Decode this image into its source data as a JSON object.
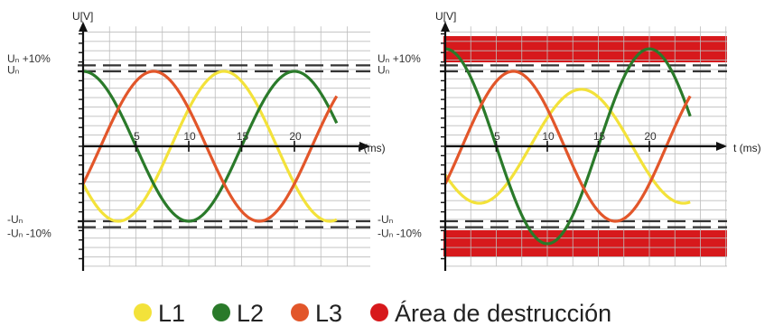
{
  "chart_data": [
    {
      "type": "line",
      "ylabel": "U[V]",
      "xlabel": "t (ms)",
      "xlim": [
        0,
        24
      ],
      "ylim": [
        -1.55,
        1.55
      ],
      "x_ticks": [
        5,
        10,
        15,
        20
      ],
      "y_labels": {
        "un_plus": "Uₙ +10%",
        "un": "Uₙ",
        "un_minus": "-Uₙ",
        "un_minus_10": "-Uₙ -10%"
      },
      "dashed_levels": [
        1.08,
        1.0,
        -1.0,
        -1.08
      ],
      "destruction_band": false,
      "series": [
        {
          "name": "L1",
          "color": "#f3e23a",
          "amplitude": 1.0,
          "phase_deg": -150
        },
        {
          "name": "L2",
          "color": "#2a7a2a",
          "amplitude": 1.0,
          "phase_deg": 90
        },
        {
          "name": "L3",
          "color": "#e2562a",
          "amplitude": 1.0,
          "phase_deg": -30
        }
      ]
    },
    {
      "type": "line",
      "ylabel": "U[V]",
      "xlabel": "t (ms)",
      "xlim": [
        0,
        24
      ],
      "ylim": [
        -1.55,
        1.55
      ],
      "x_ticks": [
        5,
        10,
        15,
        20
      ],
      "y_labels": {
        "un_plus": "Uₙ +10%",
        "un": "Uₙ",
        "un_minus": "-Uₙ",
        "un_minus_10": "-Uₙ -10%"
      },
      "dashed_levels": [
        1.08,
        1.0,
        -1.0,
        -1.08
      ],
      "destruction_band": true,
      "series": [
        {
          "name": "L1",
          "color": "#f3e23a",
          "amplitude": 0.76,
          "phase_deg": -150
        },
        {
          "name": "L2",
          "color": "#2a7a2a",
          "amplitude": 1.3,
          "phase_deg": 90
        },
        {
          "name": "L3",
          "color": "#e2562a",
          "amplitude": 1.0,
          "phase_deg": -30
        }
      ]
    }
  ],
  "legend": [
    {
      "label": "L1",
      "color": "#f3e23a"
    },
    {
      "label": "L2",
      "color": "#2a7a2a"
    },
    {
      "label": "L3",
      "color": "#e2562a"
    },
    {
      "label": "Área de destrucción",
      "color": "#d7191c"
    }
  ]
}
